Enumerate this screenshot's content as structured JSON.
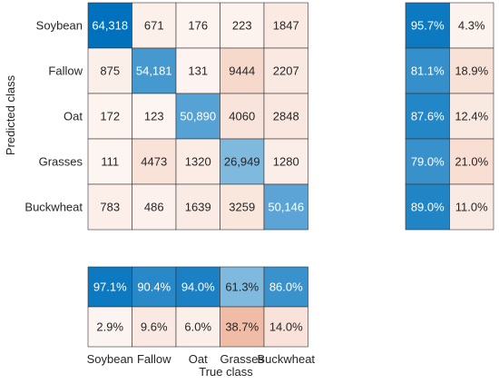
{
  "chart_data": {
    "type": "heatmap",
    "title": "",
    "xlabel": "True class",
    "ylabel": "Predicted class",
    "classes": [
      "Soybean",
      "Fallow",
      "Oat",
      "Grasses",
      "Buckwheat"
    ],
    "matrix": [
      [
        64318,
        671,
        176,
        223,
        1847
      ],
      [
        875,
        54181,
        131,
        9444,
        2207
      ],
      [
        172,
        123,
        50890,
        4060,
        2848
      ],
      [
        111,
        4473,
        1320,
        26949,
        1280
      ],
      [
        783,
        486,
        1639,
        3259,
        50146
      ]
    ],
    "matrix_labels": [
      [
        "64,318",
        "671",
        "176",
        "223",
        "1847"
      ],
      [
        "875",
        "54,181",
        "131",
        "9444",
        "2207"
      ],
      [
        "172",
        "123",
        "50,890",
        "4060",
        "2848"
      ],
      [
        "111",
        "4473",
        "1320",
        "26,949",
        "1280"
      ],
      [
        "783",
        "486",
        "1639",
        "3259",
        "50,146"
      ]
    ],
    "row_summary": [
      [
        "95.7%",
        "4.3%"
      ],
      [
        "81.1%",
        "18.9%"
      ],
      [
        "87.6%",
        "12.4%"
      ],
      [
        "79.0%",
        "21.0%"
      ],
      [
        "89.0%",
        "11.0%"
      ]
    ],
    "row_summary_values": [
      [
        95.7,
        4.3
      ],
      [
        81.1,
        18.9
      ],
      [
        87.6,
        12.4
      ],
      [
        79.0,
        21.0
      ],
      [
        89.0,
        11.0
      ]
    ],
    "column_summary": [
      [
        "97.1%",
        "90.4%",
        "94.0%",
        "61.3%",
        "86.0%"
      ],
      [
        "2.9%",
        "9.6%",
        "6.0%",
        "38.7%",
        "14.0%"
      ]
    ],
    "column_summary_values": [
      [
        97.1,
        90.4,
        94.0,
        61.3,
        86.0
      ],
      [
        2.9,
        9.6,
        6.0,
        38.7,
        14.0
      ]
    ],
    "colors": {
      "diagonal_dark": "#0072bd",
      "diagonal_light": "#ffffff",
      "offdiag_dark": "#d95319",
      "offdiag_light": "#ffffff",
      "grid": "#333333",
      "text_dark": "#262626",
      "text_light": "#ffffff"
    }
  }
}
